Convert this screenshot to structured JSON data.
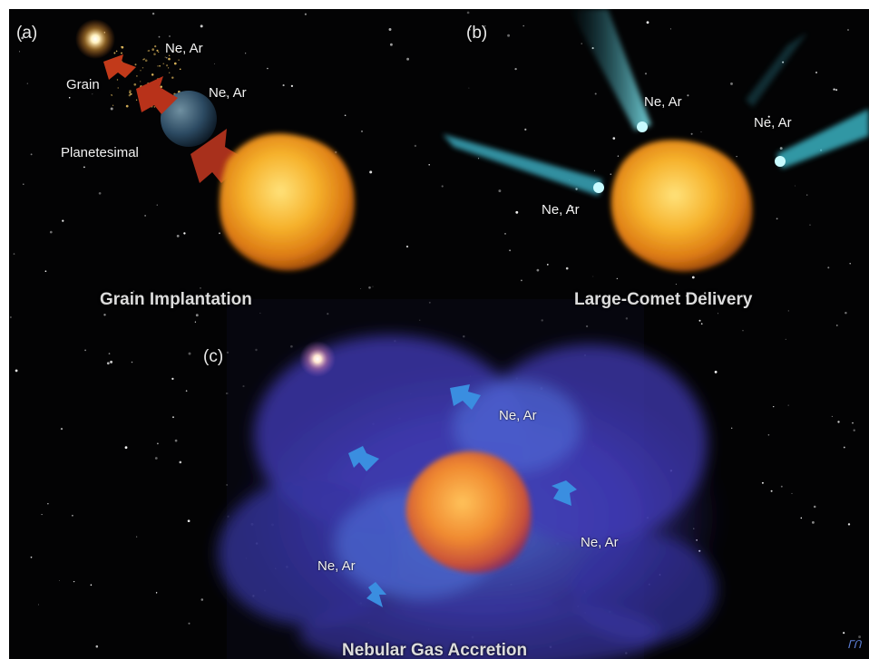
{
  "panels": {
    "a": {
      "id": "(a)",
      "labels": {
        "ne_ar_1": "Ne, Ar",
        "ne_ar_2": "Ne, Ar",
        "grain": "Grain",
        "planetesimal": "Planetesimal"
      },
      "caption": "Grain Implantation"
    },
    "b": {
      "id": "(b)",
      "labels": {
        "ne_ar_top": "Ne, Ar",
        "ne_ar_right": "Ne, Ar",
        "ne_ar_left": "Ne, Ar"
      },
      "caption": "Large-Comet Delivery"
    },
    "c": {
      "id": "(c)",
      "labels": {
        "ne_ar_top": "Ne, Ar",
        "ne_ar_right": "Ne, Ar",
        "ne_ar_left": "Ne, Ar"
      },
      "caption": "Nebular Gas Accretion"
    }
  },
  "colors": {
    "background": "#030304",
    "planet": "#f2a020",
    "arrow_red": "#b8321a",
    "comet": "#5fd3e0",
    "nebula": "#4a3bb0",
    "arrow_blue": "#3a8ee0"
  }
}
